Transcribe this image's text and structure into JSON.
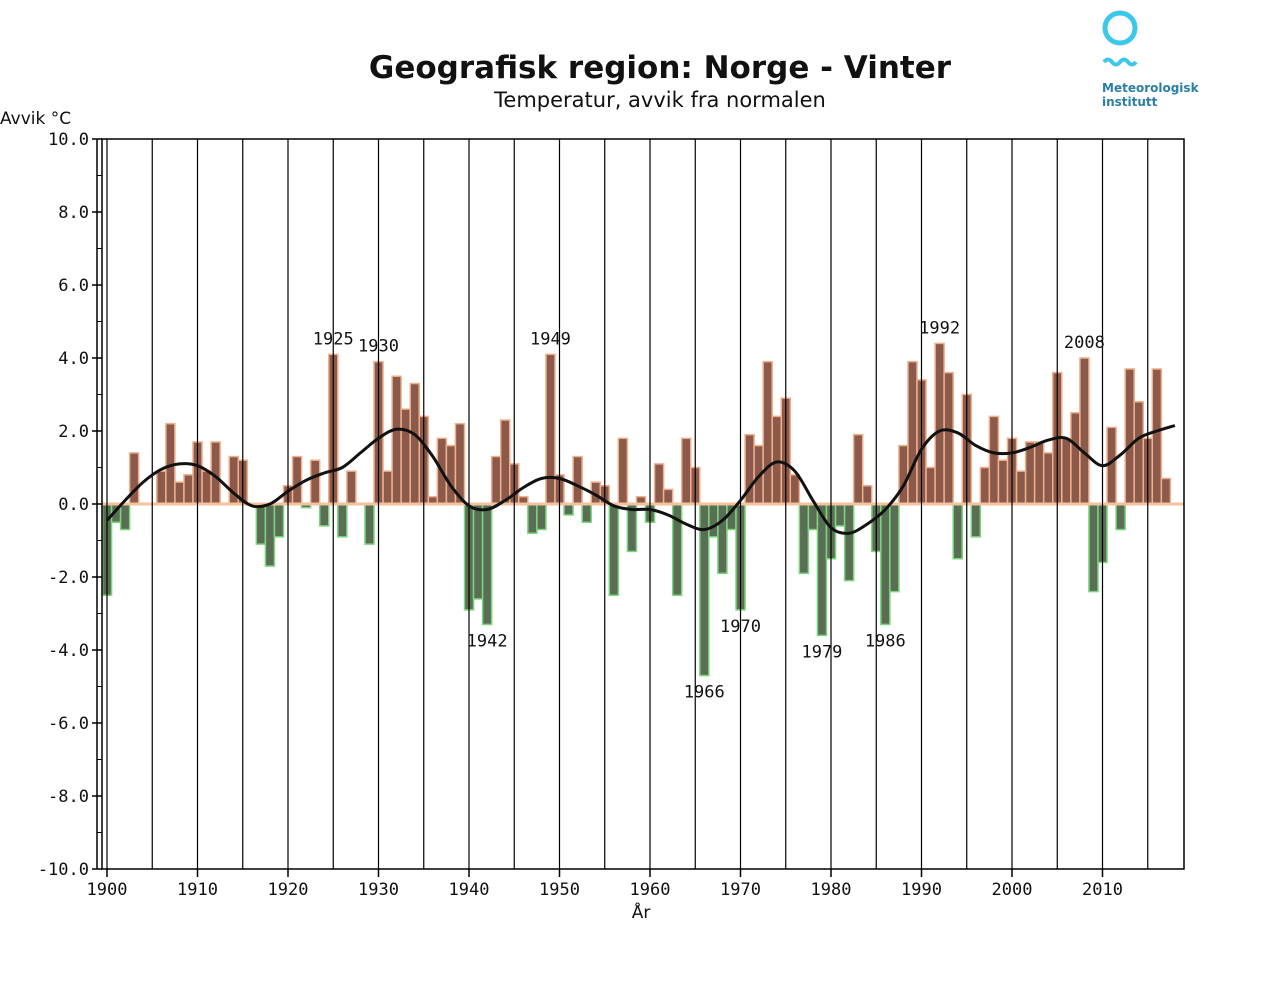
{
  "logo": {
    "line1": "Meteorologisk",
    "line2": "institutt",
    "color": "#3cc8e8"
  },
  "colors": {
    "positive": "#8b5a4a",
    "positive_edge": "#f0b08c",
    "negative": "#5a6e55",
    "negative_edge": "#7ad67a",
    "smooth": "#111111"
  },
  "chart_data": {
    "type": "bar",
    "title": "Geografisk region: Norge - Vinter",
    "subtitle": "Temperatur, avvik fra normalen",
    "ylabel": "Avvik °C",
    "xlabel": "År",
    "ylim": [
      -10.0,
      10.0
    ],
    "y_ticks": [
      "10.0",
      "8.0",
      "6.0",
      "4.0",
      "2.0",
      "0.0",
      "-2.0",
      "-4.0",
      "-6.0",
      "-8.0",
      "-10.0"
    ],
    "x_ticks": [
      "1900",
      "1910",
      "1920",
      "1930",
      "1940",
      "1950",
      "1960",
      "1970",
      "1980",
      "1990",
      "2000",
      "2010"
    ],
    "xlim": [
      1900,
      2019
    ],
    "years": [
      1900,
      1901,
      1902,
      1903,
      1904,
      1905,
      1906,
      1907,
      1908,
      1909,
      1910,
      1911,
      1912,
      1913,
      1914,
      1915,
      1916,
      1917,
      1918,
      1919,
      1920,
      1921,
      1922,
      1923,
      1924,
      1925,
      1926,
      1927,
      1928,
      1929,
      1930,
      1931,
      1932,
      1933,
      1934,
      1935,
      1936,
      1937,
      1938,
      1939,
      1940,
      1941,
      1942,
      1943,
      1944,
      1945,
      1946,
      1947,
      1948,
      1949,
      1950,
      1951,
      1952,
      1953,
      1954,
      1955,
      1956,
      1957,
      1958,
      1959,
      1960,
      1961,
      1962,
      1963,
      1964,
      1965,
      1966,
      1967,
      1968,
      1969,
      1970,
      1971,
      1972,
      1973,
      1974,
      1975,
      1976,
      1977,
      1978,
      1979,
      1980,
      1981,
      1982,
      1983,
      1984,
      1985,
      1986,
      1987,
      1988,
      1989,
      1990,
      1991,
      1992,
      1993,
      1994,
      1995,
      1996,
      1997,
      1998,
      1999,
      2000,
      2001,
      2002,
      2003,
      2004,
      2005,
      2006,
      2007,
      2008,
      2009,
      2010,
      2011,
      2012,
      2013,
      2014,
      2015,
      2016,
      2017,
      2018
    ],
    "values": [
      -2.5,
      -0.5,
      -0.7,
      1.4,
      0.0,
      0.0,
      0.9,
      2.2,
      0.6,
      0.8,
      1.7,
      0.9,
      1.7,
      0.0,
      1.3,
      1.2,
      0.0,
      -1.1,
      -1.7,
      -0.9,
      0.5,
      1.3,
      -0.1,
      1.2,
      -0.6,
      4.1,
      -0.9,
      0.9,
      0.0,
      -1.1,
      3.9,
      0.9,
      3.5,
      2.6,
      3.3,
      2.4,
      0.2,
      1.8,
      1.6,
      2.2,
      -2.9,
      -2.6,
      -3.3,
      1.3,
      2.3,
      1.1,
      0.2,
      -0.8,
      -0.7,
      4.1,
      0.8,
      -0.3,
      1.3,
      -0.5,
      0.6,
      0.5,
      -2.5,
      1.8,
      -1.3,
      0.2,
      -0.5,
      1.1,
      0.4,
      -2.5,
      1.8,
      1.0,
      -4.7,
      -0.9,
      -1.9,
      -0.7,
      -2.9,
      1.9,
      1.6,
      3.9,
      2.4,
      2.9,
      0.8,
      -1.9,
      -0.7,
      -3.6,
      -1.5,
      -0.6,
      -2.1,
      1.9,
      0.5,
      -1.3,
      -3.3,
      -2.4,
      1.6,
      3.9,
      3.4,
      1.0,
      4.4,
      3.6,
      -1.5,
      3.0,
      -0.9,
      1.0,
      2.4,
      1.2,
      1.8,
      0.9,
      1.7,
      1.7,
      1.4,
      3.6,
      1.8,
      2.5,
      4.0,
      -2.4,
      -1.6,
      2.1,
      -0.7,
      3.7,
      2.8,
      1.8,
      3.7,
      0.7,
      0.0
    ],
    "smooth_series": {
      "x": [
        1900,
        1902,
        1904,
        1906,
        1908,
        1910,
        1912,
        1914,
        1916,
        1918,
        1920,
        1922,
        1924,
        1926,
        1928,
        1930,
        1932,
        1934,
        1936,
        1938,
        1940,
        1942,
        1944,
        1946,
        1948,
        1950,
        1952,
        1954,
        1956,
        1958,
        1960,
        1962,
        1964,
        1966,
        1968,
        1970,
        1972,
        1974,
        1976,
        1978,
        1980,
        1982,
        1984,
        1986,
        1988,
        1990,
        1992,
        1994,
        1996,
        1998,
        2000,
        2002,
        2004,
        2006,
        2008,
        2010,
        2012,
        2014,
        2016,
        2018
      ],
      "y": [
        -0.45,
        0.1,
        0.6,
        0.95,
        1.1,
        1.05,
        0.75,
        0.3,
        -0.05,
        0.0,
        0.35,
        0.65,
        0.85,
        1.0,
        1.4,
        1.8,
        2.05,
        1.9,
        1.3,
        0.5,
        -0.05,
        -0.15,
        0.1,
        0.45,
        0.7,
        0.7,
        0.5,
        0.25,
        -0.05,
        -0.15,
        -0.15,
        -0.3,
        -0.55,
        -0.7,
        -0.45,
        0.1,
        0.75,
        1.15,
        0.9,
        0.1,
        -0.65,
        -0.8,
        -0.55,
        -0.15,
        0.5,
        1.5,
        2.0,
        1.95,
        1.6,
        1.4,
        1.4,
        1.55,
        1.75,
        1.8,
        1.4,
        1.05,
        1.35,
        1.8,
        2.0,
        2.15
      ]
    },
    "annotations": [
      {
        "label": "1925",
        "year": 1925,
        "value": 4.1,
        "side": "above"
      },
      {
        "label": "1930",
        "year": 1930,
        "value": 3.9,
        "side": "above"
      },
      {
        "label": "1949",
        "year": 1949,
        "value": 4.1,
        "side": "above"
      },
      {
        "label": "1992",
        "year": 1992,
        "value": 4.4,
        "side": "above"
      },
      {
        "label": "2008",
        "year": 2008,
        "value": 4.0,
        "side": "above"
      },
      {
        "label": "1942",
        "year": 1942,
        "value": -3.3,
        "side": "below"
      },
      {
        "label": "1966",
        "year": 1966,
        "value": -4.7,
        "side": "below"
      },
      {
        "label": "1970",
        "year": 1970,
        "value": -2.9,
        "side": "below"
      },
      {
        "label": "1979",
        "year": 1979,
        "value": -3.6,
        "side": "below"
      },
      {
        "label": "1986",
        "year": 1986,
        "value": -3.3,
        "side": "below"
      }
    ]
  }
}
